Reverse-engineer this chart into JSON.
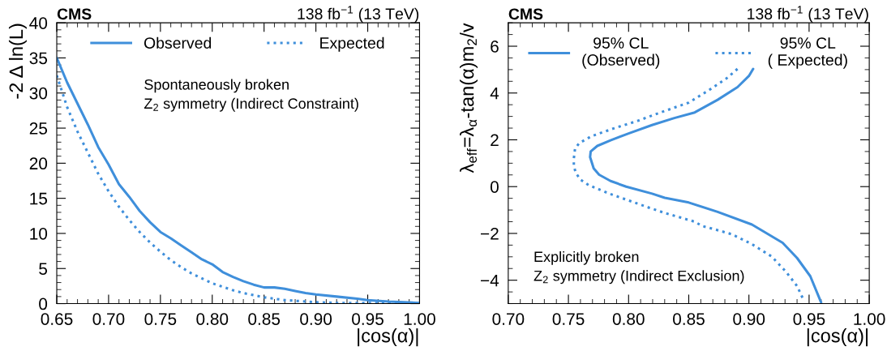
{
  "chart_data": [
    {
      "type": "line",
      "title": "CMS",
      "subtitle": "138 fb$^{−1}$ (13 TeV)",
      "xlabel": "|cos(α)|",
      "ylabel": "-2 Δ ln(L)",
      "annotations": [
        "Spontaneously broken\nZ$_{2}$ symmetry (Indirect Constraint)"
      ],
      "legend": "top",
      "grid": false,
      "xlim": [
        0.65,
        1.0
      ],
      "xticks": [
        0.65,
        {
          "value": 0.7,
          "label": "0.70"
        },
        0.75,
        {
          "value": 0.8,
          "label": "0.80"
        },
        0.85,
        {
          "value": 0.9,
          "label": "0.90"
        },
        0.95,
        {
          "value": 1.0,
          "label": "1.00"
        }
      ],
      "ylim": [
        0,
        40
      ],
      "yticks": [
        0,
        5,
        10,
        15,
        20,
        25,
        30,
        35,
        40
      ],
      "series": [
        {
          "name": "Observed",
          "color": "#3f8fdb",
          "line_style": "solid",
          "x": [
            0.65,
            0.66,
            0.67,
            0.68,
            0.69,
            0.7,
            0.71,
            0.72,
            0.73,
            0.74,
            0.75,
            0.76,
            0.77,
            0.78,
            0.79,
            0.8,
            0.81,
            0.82,
            0.83,
            0.84,
            0.85,
            0.86,
            0.87,
            0.88,
            0.89,
            0.9,
            0.92,
            0.94,
            0.95,
            0.97,
            1.0
          ],
          "values": [
            35,
            31.5,
            28.5,
            25.5,
            22.3,
            19.8,
            17,
            15.2,
            13.2,
            11.6,
            10.2,
            9.3,
            8.3,
            7.3,
            6.3,
            5.6,
            4.5,
            3.8,
            3.2,
            2.7,
            2.3,
            2.3,
            2.1,
            1.8,
            1.5,
            1.3,
            1.0,
            0.7,
            0.5,
            0.3,
            0.1
          ]
        },
        {
          "name": "Expected",
          "color": "#3f8fdb",
          "line_style": "dotted",
          "x": [
            0.65,
            0.66,
            0.67,
            0.68,
            0.69,
            0.7,
            0.71,
            0.72,
            0.73,
            0.74,
            0.75,
            0.76,
            0.77,
            0.78,
            0.79,
            0.8,
            0.81,
            0.82,
            0.83,
            0.84,
            0.85,
            0.86,
            0.87,
            0.88,
            0.9,
            0.92,
            0.95,
            1.0
          ],
          "values": [
            32.5,
            28,
            24.5,
            21.5,
            18.5,
            16,
            13.8,
            11.9,
            10.2,
            8.7,
            7.4,
            6.2,
            5.2,
            4.3,
            3.6,
            2.9,
            2.4,
            1.9,
            1.5,
            1.2,
            0.9,
            0.7,
            0.5,
            0.4,
            0.2,
            0.1,
            0.1,
            0
          ]
        }
      ]
    },
    {
      "type": "line",
      "title": "CMS",
      "subtitle": "138 fb$^{−1}$ (13 TeV)",
      "xlabel": "|cos(α)|",
      "ylabel": "λ$_{eff}$=λ$_{α}$-tan(α)m$_{2}$/v",
      "annotations": [
        "Explicitly broken\nZ$_{2}$ symmetry (Indirect Exclusion)"
      ],
      "legend": "top",
      "grid": false,
      "xlim": [
        0.7,
        1.0
      ],
      "xticks": [
        {
          "value": 0.7,
          "label": "0.70"
        },
        0.75,
        {
          "value": 0.8,
          "label": "0.80"
        },
        0.85,
        {
          "value": 0.9,
          "label": "0.90"
        },
        0.95,
        {
          "value": 1.0,
          "label": "1.00"
        }
      ],
      "ylim": [
        -5,
        7
      ],
      "yticks": [
        {
          "value": -4,
          "label": "−4"
        },
        {
          "value": -2,
          "label": "−2"
        },
        0,
        2,
        4,
        6
      ],
      "series": [
        {
          "name": "95% CL\n(Observed)",
          "color": "#3f8fdb",
          "line_style": "solid",
          "x": [
            0.9035,
            0.9,
            0.8905,
            0.874,
            0.855,
            0.838,
            0.8195,
            0.8005,
            0.785,
            0.774,
            0.7685,
            0.768,
            0.771,
            0.7755,
            0.785,
            0.798,
            0.8195,
            0.83,
            0.85,
            0.874,
            0.9025,
            0.928,
            0.94,
            0.951,
            0.96
          ],
          "values": [
            5.03,
            4.73,
            4.25,
            3.71,
            3.17,
            2.93,
            2.63,
            2.28,
            1.98,
            1.74,
            1.5,
            1.26,
            0.78,
            0.51,
            0.24,
            0,
            -0.3,
            -0.48,
            -0.68,
            -1.08,
            -1.62,
            -2.4,
            -3.05,
            -3.83,
            -4.95
          ]
        },
        {
          "name": "95% CL\n( Expected)",
          "color": "#3f8fdb",
          "line_style": "dotted",
          "x": [
            0.8905,
            0.881,
            0.867,
            0.85,
            0.8265,
            0.8075,
            0.786,
            0.7695,
            0.759,
            0.7555,
            0.7545,
            0.7545,
            0.756,
            0.76,
            0.767,
            0.784,
            0.8005,
            0.817,
            0.831,
            0.843,
            0.855,
            0.861,
            0.874,
            0.886,
            0.9025,
            0.919,
            0.931,
            0.94,
            0.946
          ],
          "values": [
            5.03,
            4.61,
            4.13,
            3.59,
            3.17,
            2.81,
            2.46,
            2.16,
            1.86,
            1.62,
            1.2,
            0.9,
            0.6,
            0.3,
            0.06,
            -0.3,
            -0.6,
            -0.9,
            -1.14,
            -1.32,
            -1.5,
            -1.68,
            -1.86,
            -2.04,
            -2.46,
            -2.99,
            -3.65,
            -4.25,
            -4.91
          ]
        }
      ]
    }
  ]
}
